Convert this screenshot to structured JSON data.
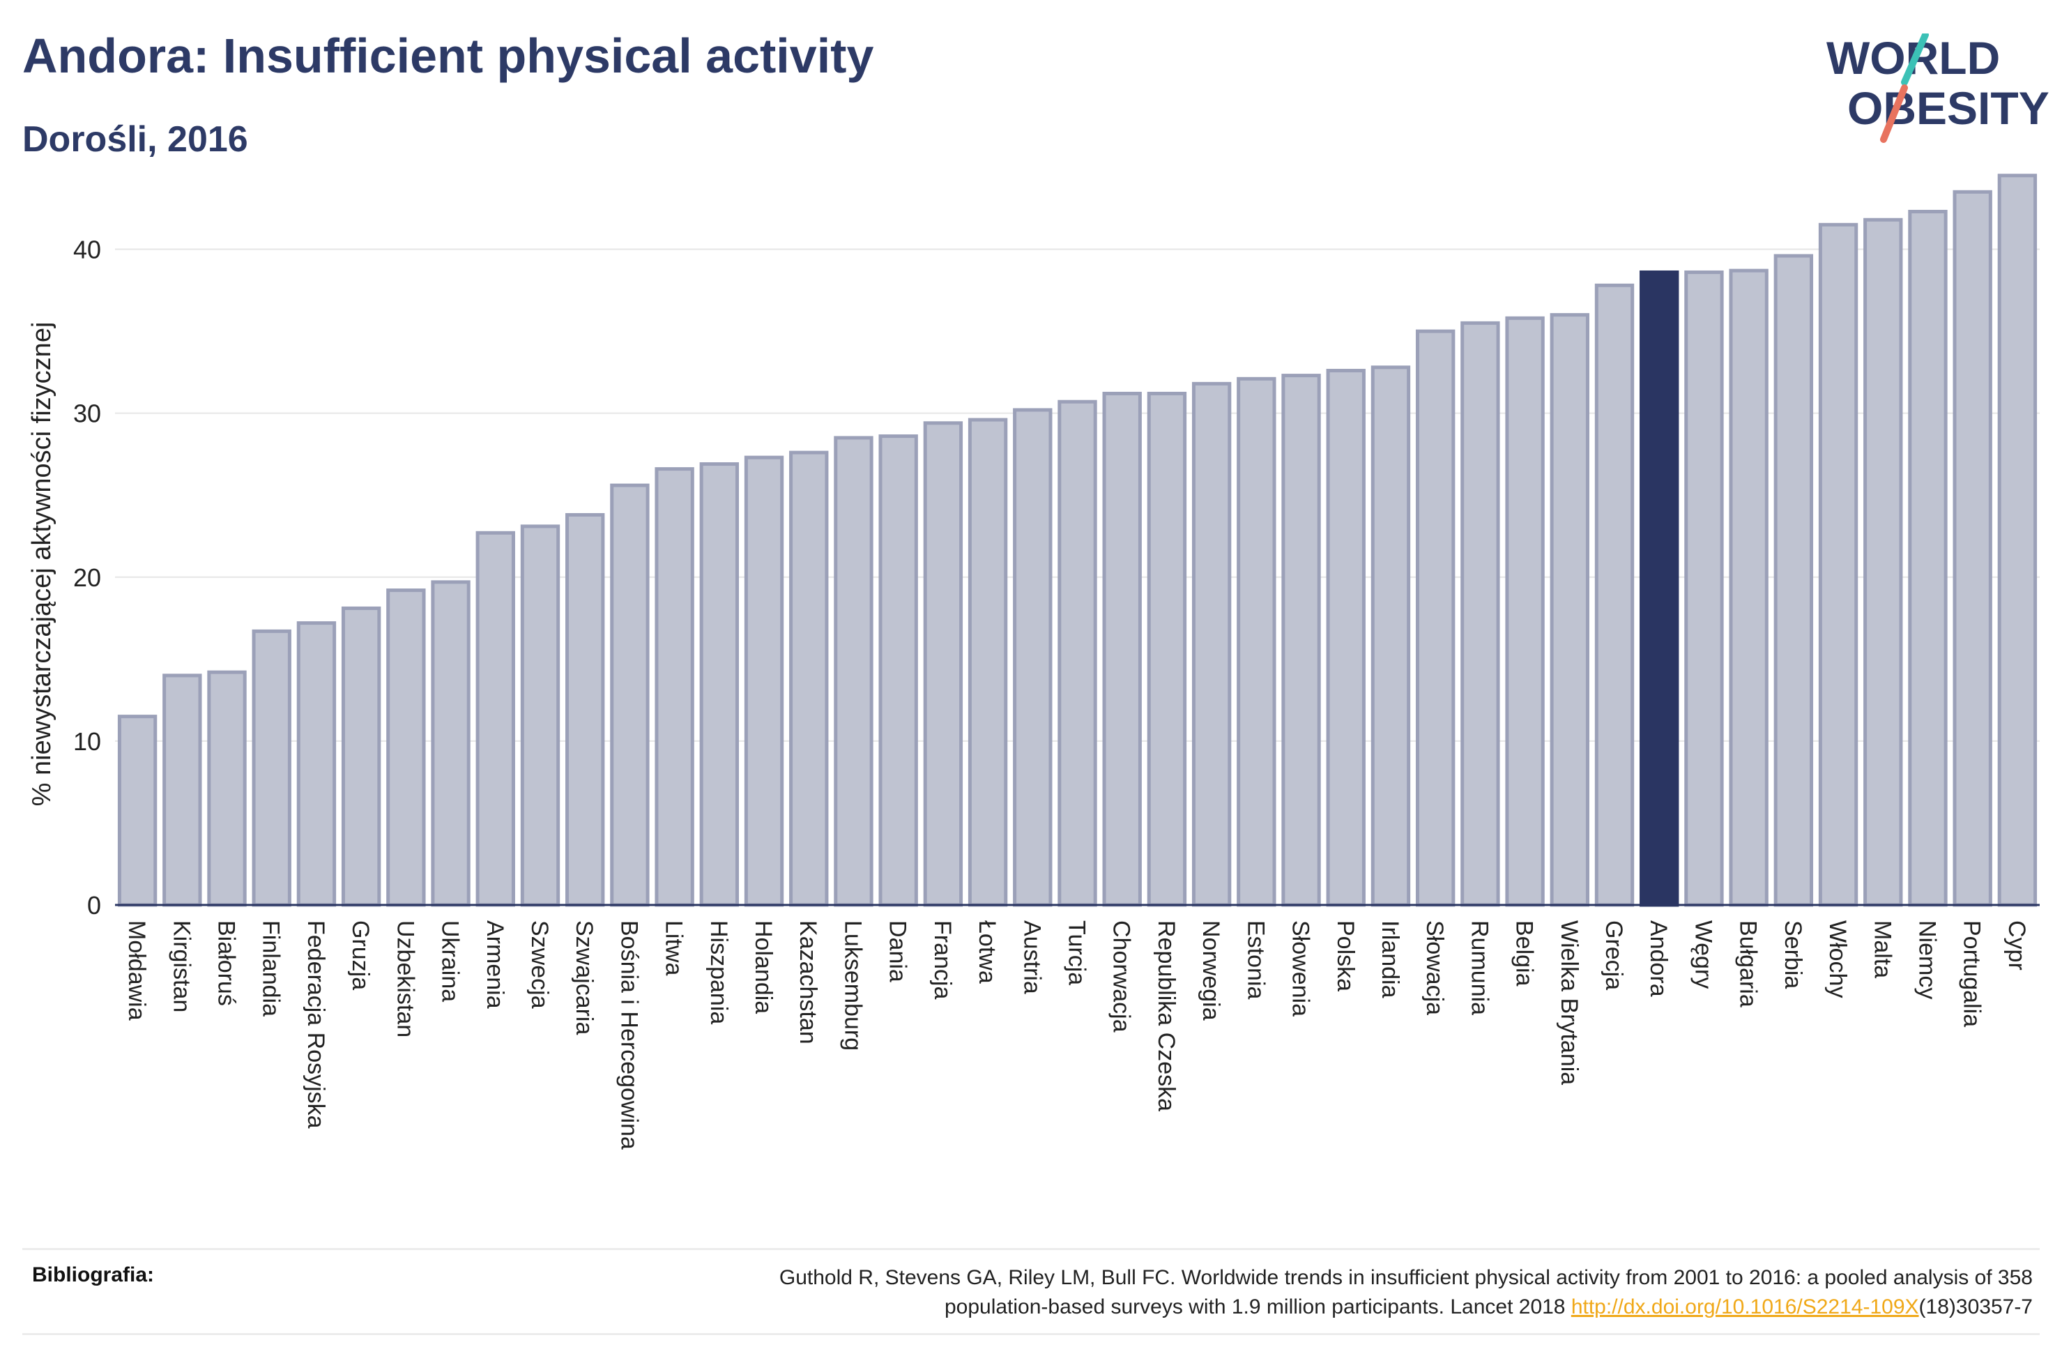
{
  "header": {
    "title": "Andora: Insufficient physical activity",
    "subtitle": "Dorośli, 2016"
  },
  "logo": {
    "line1": "WORLD",
    "line2": "OBESITY"
  },
  "chart_data": {
    "type": "bar",
    "title": "Andora: Insufficient physical activity",
    "subtitle": "Dorośli, 2016",
    "ylabel": "% niewystarczającej aktywności fizycznej",
    "xlabel": "",
    "ylim": [
      0,
      45
    ],
    "yticks": [
      0,
      10,
      20,
      30,
      40
    ],
    "grid": true,
    "highlight": "Andora",
    "colors": {
      "bar": "#bfc3d1",
      "bar_edge": "#9ba0b8",
      "highlight": "#2a3562"
    },
    "categories": [
      "Mołdawia",
      "Kirgistan",
      "Białoruś",
      "Finlandia",
      "Federacja Rosyjska",
      "Gruzja",
      "Uzbekistan",
      "Ukraina",
      "Armenia",
      "Szwecja",
      "Szwajcaria",
      "Bośnia i Hercegowina",
      "Litwa",
      "Hiszpania",
      "Holandia",
      "Kazachstan",
      "Luksemburg",
      "Dania",
      "Francja",
      "Łotwa",
      "Austria",
      "Turcja",
      "Chorwacja",
      "Republika Czeska",
      "Norwegia",
      "Estonia",
      "Słowenia",
      "Polska",
      "Irlandia",
      "Słowacja",
      "Rumunia",
      "Belgia",
      "Wielka Brytania",
      "Grecja",
      "Andora",
      "Węgry",
      "Bułgaria",
      "Serbia",
      "Włochy",
      "Malta",
      "Niemcy",
      "Portugalia",
      "Cypr"
    ],
    "values": [
      11.5,
      14.0,
      14.2,
      16.7,
      17.2,
      18.1,
      19.2,
      19.7,
      22.7,
      23.1,
      23.8,
      25.6,
      26.6,
      26.9,
      27.3,
      27.6,
      28.5,
      28.6,
      29.4,
      29.6,
      30.2,
      30.7,
      31.2,
      31.2,
      31.8,
      32.1,
      32.3,
      32.6,
      32.8,
      35.0,
      35.5,
      35.8,
      36.0,
      37.8,
      38.6,
      38.6,
      38.7,
      39.6,
      41.5,
      41.8,
      42.3,
      43.5,
      44.5
    ]
  },
  "footer": {
    "label": "Bibliografia:",
    "line1": "Guthold R, Stevens GA, Riley LM, Bull FC. Worldwide trends in insufficient physical activity from 2001 to 2016: a pooled analysis of 358",
    "line2_prefix": "population-based surveys with 1.9 million participants. Lancet 2018 ",
    "link": "http://dx.doi.org/10.1016/S2214-109X",
    "line2_suffix": "(18)30357-7"
  }
}
